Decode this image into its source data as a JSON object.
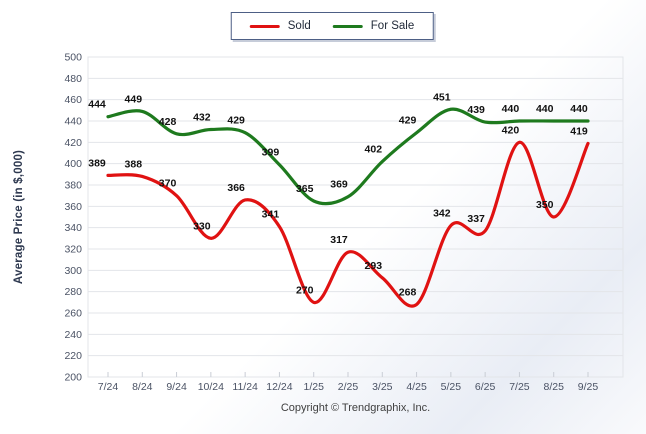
{
  "legend": {
    "items": [
      {
        "label": "Sold",
        "color": "#e01212"
      },
      {
        "label": "For Sale",
        "color": "#1e7a1e"
      }
    ]
  },
  "chart_data": {
    "type": "line",
    "title": "",
    "xlabel": "",
    "ylabel": "Average Price (in $,000)",
    "ylim": [
      200,
      500
    ],
    "y_tick_step": 20,
    "grid": "horizontal",
    "legend_position": "top-center",
    "line_style": "smooth-spline",
    "categories": [
      "7/24",
      "8/24",
      "9/24",
      "10/24",
      "11/24",
      "12/24",
      "1/25",
      "2/25",
      "3/25",
      "4/25",
      "5/25",
      "6/25",
      "7/25",
      "8/25",
      "9/25"
    ],
    "series": [
      {
        "name": "For Sale",
        "color": "#1e7a1e",
        "values": [
          444,
          449,
          428,
          432,
          429,
          399,
          365,
          369,
          402,
          429,
          451,
          439,
          440,
          440,
          440
        ]
      },
      {
        "name": "Sold",
        "color": "#e01212",
        "values": [
          389,
          388,
          370,
          330,
          366,
          341,
          270,
          317,
          293,
          268,
          342,
          337,
          420,
          350,
          419
        ]
      }
    ],
    "colors": {
      "grid_line": "#e3e5e9",
      "axis_line": "#d2d5da",
      "tick_text": "#4a5264",
      "point_label_text": "#111111"
    }
  },
  "footer": {
    "copyright": "Copyright © Trendgraphix, Inc."
  }
}
